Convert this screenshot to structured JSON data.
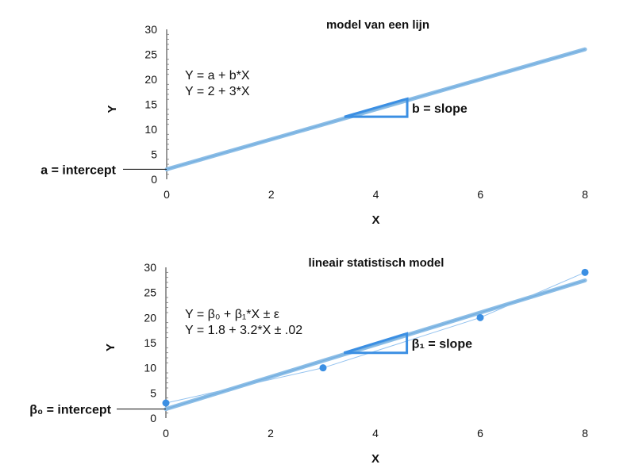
{
  "colors": {
    "fit_line": "#8bbde6",
    "fit_line_core": "#6aa8dd",
    "triangle": "#3b8fe3",
    "points": "#3b8fe3",
    "connector": "#93c2ef",
    "axis": "#333333"
  },
  "chart_data": [
    {
      "type": "line",
      "title": "model van een lijn",
      "xlabel": "X",
      "ylabel": "Y",
      "xlim": [
        0,
        8
      ],
      "ylim": [
        0,
        30
      ],
      "x_ticks": [
        "0",
        "2",
        "4",
        "6",
        "8"
      ],
      "y_ticks": [
        "0",
        "5",
        "10",
        "15",
        "20",
        "25",
        "30"
      ],
      "line": {
        "intercept": 2,
        "slope": 3
      },
      "equations": [
        "Y = a + b*X",
        "Y = 2 + 3*X"
      ],
      "intercept_label": "a = intercept",
      "slope_label": "b = slope",
      "slope_triangle": {
        "x0": 3.4,
        "x1": 4.6
      },
      "points": []
    },
    {
      "type": "scatter",
      "title": "lineair statistisch model",
      "xlabel": "X",
      "ylabel": "Y",
      "xlim": [
        0,
        8
      ],
      "ylim": [
        0,
        30
      ],
      "x_ticks": [
        "0",
        "2",
        "4",
        "6",
        "8"
      ],
      "y_ticks": [
        "0",
        "5",
        "10",
        "15",
        "20",
        "25",
        "30"
      ],
      "line": {
        "intercept": 1.8,
        "slope": 3.2
      },
      "equations": [
        "Y = β₀ + β₁*X ± ε",
        "Y = 1.8 + 3.2*X ± .02"
      ],
      "intercept_label": "β₀ = intercept",
      "slope_label": "β₁ = slope",
      "slope_triangle": {
        "x0": 3.4,
        "x1": 4.6
      },
      "points": [
        {
          "x": 0,
          "y": 3
        },
        {
          "x": 3,
          "y": 10
        },
        {
          "x": 6,
          "y": 20
        },
        {
          "x": 8,
          "y": 29
        }
      ]
    }
  ]
}
